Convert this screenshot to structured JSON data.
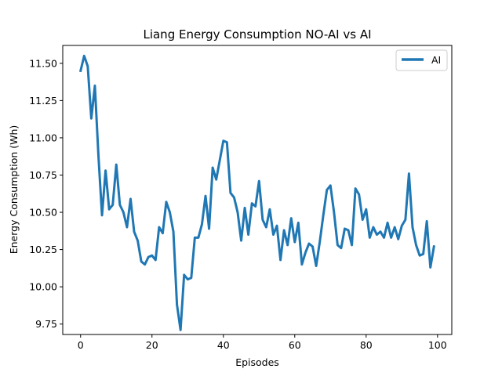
{
  "chart_data": {
    "type": "line",
    "title": "Liang Energy Consumption NO-AI vs AI",
    "xlabel": "Episodes",
    "ylabel": "Energy Consumption (Wh)",
    "xlim": [
      -5,
      104
    ],
    "ylim": [
      9.68,
      11.62
    ],
    "xticks": [
      0,
      20,
      40,
      60,
      80,
      100
    ],
    "yticks": [
      9.75,
      10.0,
      10.25,
      10.5,
      10.75,
      11.0,
      11.25,
      11.5
    ],
    "ytick_labels": [
      "9.75",
      "10.00",
      "10.25",
      "10.50",
      "10.75",
      "11.00",
      "11.25",
      "11.50"
    ],
    "grid": false,
    "legend_position": "top-right",
    "series": [
      {
        "name": "AI",
        "color": "#1f77b4",
        "x": [
          0,
          1,
          2,
          3,
          4,
          5,
          6,
          7,
          8,
          9,
          10,
          11,
          12,
          13,
          14,
          15,
          16,
          17,
          18,
          19,
          20,
          21,
          22,
          23,
          24,
          25,
          26,
          27,
          28,
          29,
          30,
          31,
          32,
          33,
          34,
          35,
          36,
          37,
          38,
          39,
          40,
          41,
          42,
          43,
          44,
          45,
          46,
          47,
          48,
          49,
          50,
          51,
          52,
          53,
          54,
          55,
          56,
          57,
          58,
          59,
          60,
          61,
          62,
          63,
          64,
          65,
          66,
          67,
          68,
          69,
          70,
          71,
          72,
          73,
          74,
          75,
          76,
          77,
          78,
          79,
          80,
          81,
          82,
          83,
          84,
          85,
          86,
          87,
          88,
          89,
          90,
          91,
          92,
          93,
          94,
          95,
          96,
          97,
          98,
          99
        ],
        "y": [
          11.45,
          11.55,
          11.48,
          11.13,
          11.35,
          10.88,
          10.48,
          10.78,
          10.52,
          10.55,
          10.82,
          10.55,
          10.5,
          10.4,
          10.59,
          10.37,
          10.31,
          10.17,
          10.15,
          10.2,
          10.21,
          10.18,
          10.4,
          10.36,
          10.57,
          10.5,
          10.37,
          9.88,
          9.71,
          10.08,
          10.05,
          10.06,
          10.33,
          10.33,
          10.42,
          10.61,
          10.39,
          10.8,
          10.72,
          10.85,
          10.98,
          10.97,
          10.63,
          10.6,
          10.5,
          10.31,
          10.53,
          10.35,
          10.56,
          10.54,
          10.71,
          10.45,
          10.4,
          10.52,
          10.35,
          10.41,
          10.18,
          10.38,
          10.28,
          10.46,
          10.3,
          10.43,
          10.15,
          10.23,
          10.29,
          10.27,
          10.14,
          10.3,
          10.48,
          10.65,
          10.68,
          10.5,
          10.28,
          10.26,
          10.39,
          10.38,
          10.28,
          10.66,
          10.62,
          10.45,
          10.52,
          10.33,
          10.4,
          10.35,
          10.37,
          10.33,
          10.43,
          10.33,
          10.4,
          10.32,
          10.41,
          10.45,
          10.76,
          10.4,
          10.28,
          10.21,
          10.22,
          10.44,
          10.13,
          10.27
        ]
      }
    ]
  }
}
